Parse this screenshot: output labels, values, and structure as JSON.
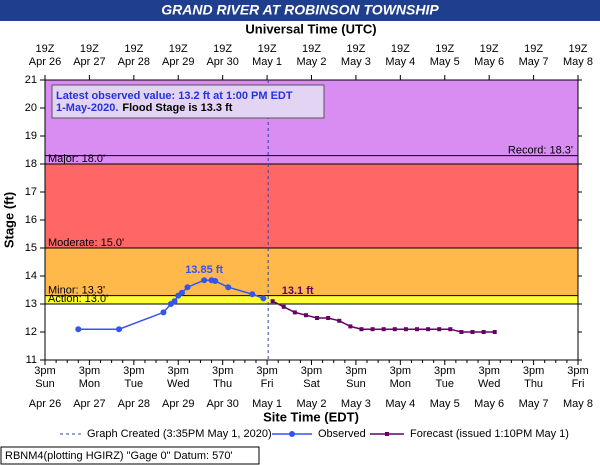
{
  "chart_data": {
    "type": "line",
    "title": "GRAND RIVER AT ROBINSON TOWNSHIP",
    "top_axis_label": "Universal Time (UTC)",
    "x_label": "Site Time (EDT)",
    "y_label": "Stage (ft)",
    "xlim": [
      "2020-04-26T15:00",
      "2020-05-08T15:00"
    ],
    "xticks": [
      {
        "value": "2020-04-26T15:00",
        "label": "3pm",
        "weekday": "Sun",
        "date": "Apr 26",
        "utc": "19Z"
      },
      {
        "value": "2020-04-27T15:00",
        "label": "3pm",
        "weekday": "Mon",
        "date": "Apr 27",
        "utc": "19Z"
      },
      {
        "value": "2020-04-28T15:00",
        "label": "3pm",
        "weekday": "Tue",
        "date": "Apr 28",
        "utc": "19Z"
      },
      {
        "value": "2020-04-29T15:00",
        "label": "3pm",
        "weekday": "Wed",
        "date": "Apr 29",
        "utc": "19Z"
      },
      {
        "value": "2020-04-30T15:00",
        "label": "3pm",
        "weekday": "Thu",
        "date": "Apr 30",
        "utc": "19Z"
      },
      {
        "value": "2020-05-01T15:00",
        "label": "3pm",
        "weekday": "Fri",
        "date": "May 1",
        "utc": "19Z"
      },
      {
        "value": "2020-05-02T15:00",
        "label": "3pm",
        "weekday": "Sat",
        "date": "May 2",
        "utc": "19Z"
      },
      {
        "value": "2020-05-03T15:00",
        "label": "3pm",
        "weekday": "Sun",
        "date": "May 3",
        "utc": "19Z"
      },
      {
        "value": "2020-05-04T15:00",
        "label": "3pm",
        "weekday": "Mon",
        "date": "May 4",
        "utc": "19Z"
      },
      {
        "value": "2020-05-05T15:00",
        "label": "3pm",
        "weekday": "Tue",
        "date": "May 5",
        "utc": "19Z"
      },
      {
        "value": "2020-05-06T15:00",
        "label": "3pm",
        "weekday": "Wed",
        "date": "May 6",
        "utc": "19Z"
      },
      {
        "value": "2020-05-07T15:00",
        "label": "3pm",
        "weekday": "Thu",
        "date": "May 7",
        "utc": "19Z"
      },
      {
        "value": "2020-05-08T15:00",
        "label": "3pm",
        "weekday": "Fri",
        "date": "May 8",
        "utc": "19Z"
      }
    ],
    "ylim": [
      11,
      21
    ],
    "yticks": [
      11,
      12,
      13,
      14,
      15,
      16,
      17,
      18,
      19,
      20,
      21
    ],
    "flood_stages": [
      {
        "value": 13.0,
        "label": "Action: 13.0'",
        "color": "#ffff33"
      },
      {
        "value": 13.3,
        "label": "Minor: 13.3'",
        "color": "#ffb84a"
      },
      {
        "value": 15.0,
        "label": "Moderate: 15.0'",
        "color": "#ff6666"
      },
      {
        "value": 18.0,
        "label": "Major: 18.0'",
        "color": "#d98cf2"
      },
      {
        "value": 18.3,
        "label": "Record: 18.3'",
        "color": "#d98cf2"
      }
    ],
    "created_time": "2020-05-01T15:35",
    "created_label": "Graph Created (3:35PM May 1, 2020)",
    "latest_note": [
      "Latest observed value: 13.2 ft at 1:00 PM EDT",
      "1-May-2020."
    ],
    "flood_stage_note": "Flood Stage is 13.3 ft",
    "series": [
      {
        "name": "Observed",
        "color": "#3355ee",
        "marker": "circle",
        "x": [
          "2020-04-27T09:00",
          "2020-04-28T07:00",
          "2020-04-29T07:00",
          "2020-04-29T11:00",
          "2020-04-29T13:00",
          "2020-04-29T15:00",
          "2020-04-29T17:00",
          "2020-04-29T20:00",
          "2020-04-30T05:00",
          "2020-04-30T09:00",
          "2020-04-30T11:00",
          "2020-04-30T18:00",
          "2020-05-01T07:00",
          "2020-05-01T13:00"
        ],
        "values": [
          12.1,
          12.1,
          12.7,
          13.0,
          13.1,
          13.3,
          13.4,
          13.6,
          13.85,
          13.85,
          13.82,
          13.6,
          13.35,
          13.2
        ],
        "value_labels": [
          null,
          null,
          null,
          null,
          null,
          null,
          null,
          null,
          "13.85 ft",
          null,
          null,
          null,
          null,
          null
        ]
      },
      {
        "name": "Forecast (issued 1:10PM May 1)",
        "color": "#660066",
        "marker": "square",
        "x": [
          "2020-05-01T18:00",
          "2020-05-02T00:00",
          "2020-05-02T06:00",
          "2020-05-02T12:00",
          "2020-05-02T18:00",
          "2020-05-03T00:00",
          "2020-05-03T06:00",
          "2020-05-03T12:00",
          "2020-05-03T18:00",
          "2020-05-04T00:00",
          "2020-05-04T06:00",
          "2020-05-04T12:00",
          "2020-05-04T18:00",
          "2020-05-05T00:00",
          "2020-05-05T06:00",
          "2020-05-05T12:00",
          "2020-05-05T18:00",
          "2020-05-06T00:00",
          "2020-05-06T06:00",
          "2020-05-06T12:00",
          "2020-05-06T18:00"
        ],
        "values": [
          13.1,
          12.9,
          12.7,
          12.6,
          12.5,
          12.5,
          12.4,
          12.2,
          12.1,
          12.1,
          12.1,
          12.1,
          12.1,
          12.1,
          12.1,
          12.1,
          12.1,
          12.0,
          12.0,
          12.0,
          12.0
        ],
        "value_labels": [
          "13.1 ft",
          null,
          null,
          null,
          null,
          null,
          null,
          null,
          null,
          null,
          null,
          null,
          null,
          null,
          null,
          null,
          null,
          null,
          null,
          null,
          null
        ]
      }
    ],
    "footer": "RBNM4(plotting HGIRZ) \"Gage 0\" Datum: 570'"
  }
}
